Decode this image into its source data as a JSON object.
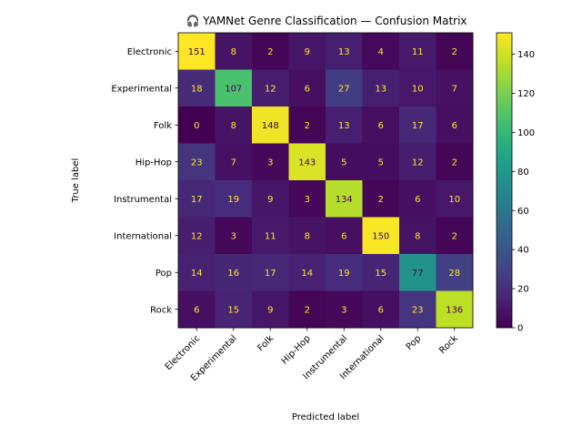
{
  "chart_data": {
    "type": "heatmap",
    "title": "🎧 YAMNet Genre Classification — Confusion Matrix",
    "xlabel": "Predicted label",
    "ylabel": "True label",
    "x_categories": [
      "Electronic",
      "Experimental",
      "Folk",
      "Hip-Hop",
      "Instrumental",
      "International",
      "Pop",
      "Rock"
    ],
    "y_categories": [
      "Electronic",
      "Experimental",
      "Folk",
      "Hip-Hop",
      "Instrumental",
      "International",
      "Pop",
      "Rock"
    ],
    "values": [
      [
        151,
        8,
        2,
        9,
        13,
        4,
        11,
        2
      ],
      [
        18,
        107,
        12,
        6,
        27,
        13,
        10,
        7
      ],
      [
        0,
        8,
        148,
        2,
        13,
        6,
        17,
        6
      ],
      [
        23,
        7,
        3,
        143,
        5,
        5,
        12,
        2
      ],
      [
        17,
        19,
        9,
        3,
        134,
        2,
        6,
        10
      ],
      [
        12,
        3,
        11,
        8,
        6,
        150,
        8,
        2
      ],
      [
        14,
        16,
        17,
        14,
        19,
        15,
        77,
        28
      ],
      [
        6,
        15,
        9,
        2,
        3,
        6,
        23,
        136
      ]
    ],
    "colormap": "viridis",
    "colorbar_ticks": [
      "0",
      "20",
      "40",
      "60",
      "80",
      "100",
      "120",
      "140"
    ],
    "zlim": [
      0,
      151
    ],
    "text_colors": {
      "low": "#fde725",
      "high": "#440154"
    },
    "x_tick_rotation_deg": 45,
    "grid": false
  }
}
